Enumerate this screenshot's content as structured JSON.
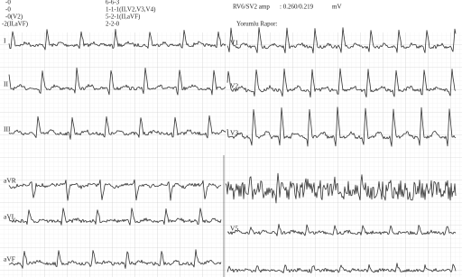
{
  "header": {
    "left": [
      "-0",
      "-0",
      "-0(V2)",
      "-2(II,aVF)"
    ],
    "middle": [
      "6-6-3",
      "1-1-1(II,V2,V3,V4)",
      "5-2-1(II,aVF)",
      "2-2-0"
    ],
    "amp_label": "RV6/SV2 amp",
    "amp_value": ": 0.260/0.219",
    "amp_unit": "mV",
    "report_label": "Yorumlu Rapor:"
  },
  "leads": {
    "left": [
      "I",
      "II",
      "III",
      "aVR",
      "aVL",
      "aVF"
    ],
    "right": [
      "V1",
      "V2",
      "V3",
      "V5"
    ]
  }
}
